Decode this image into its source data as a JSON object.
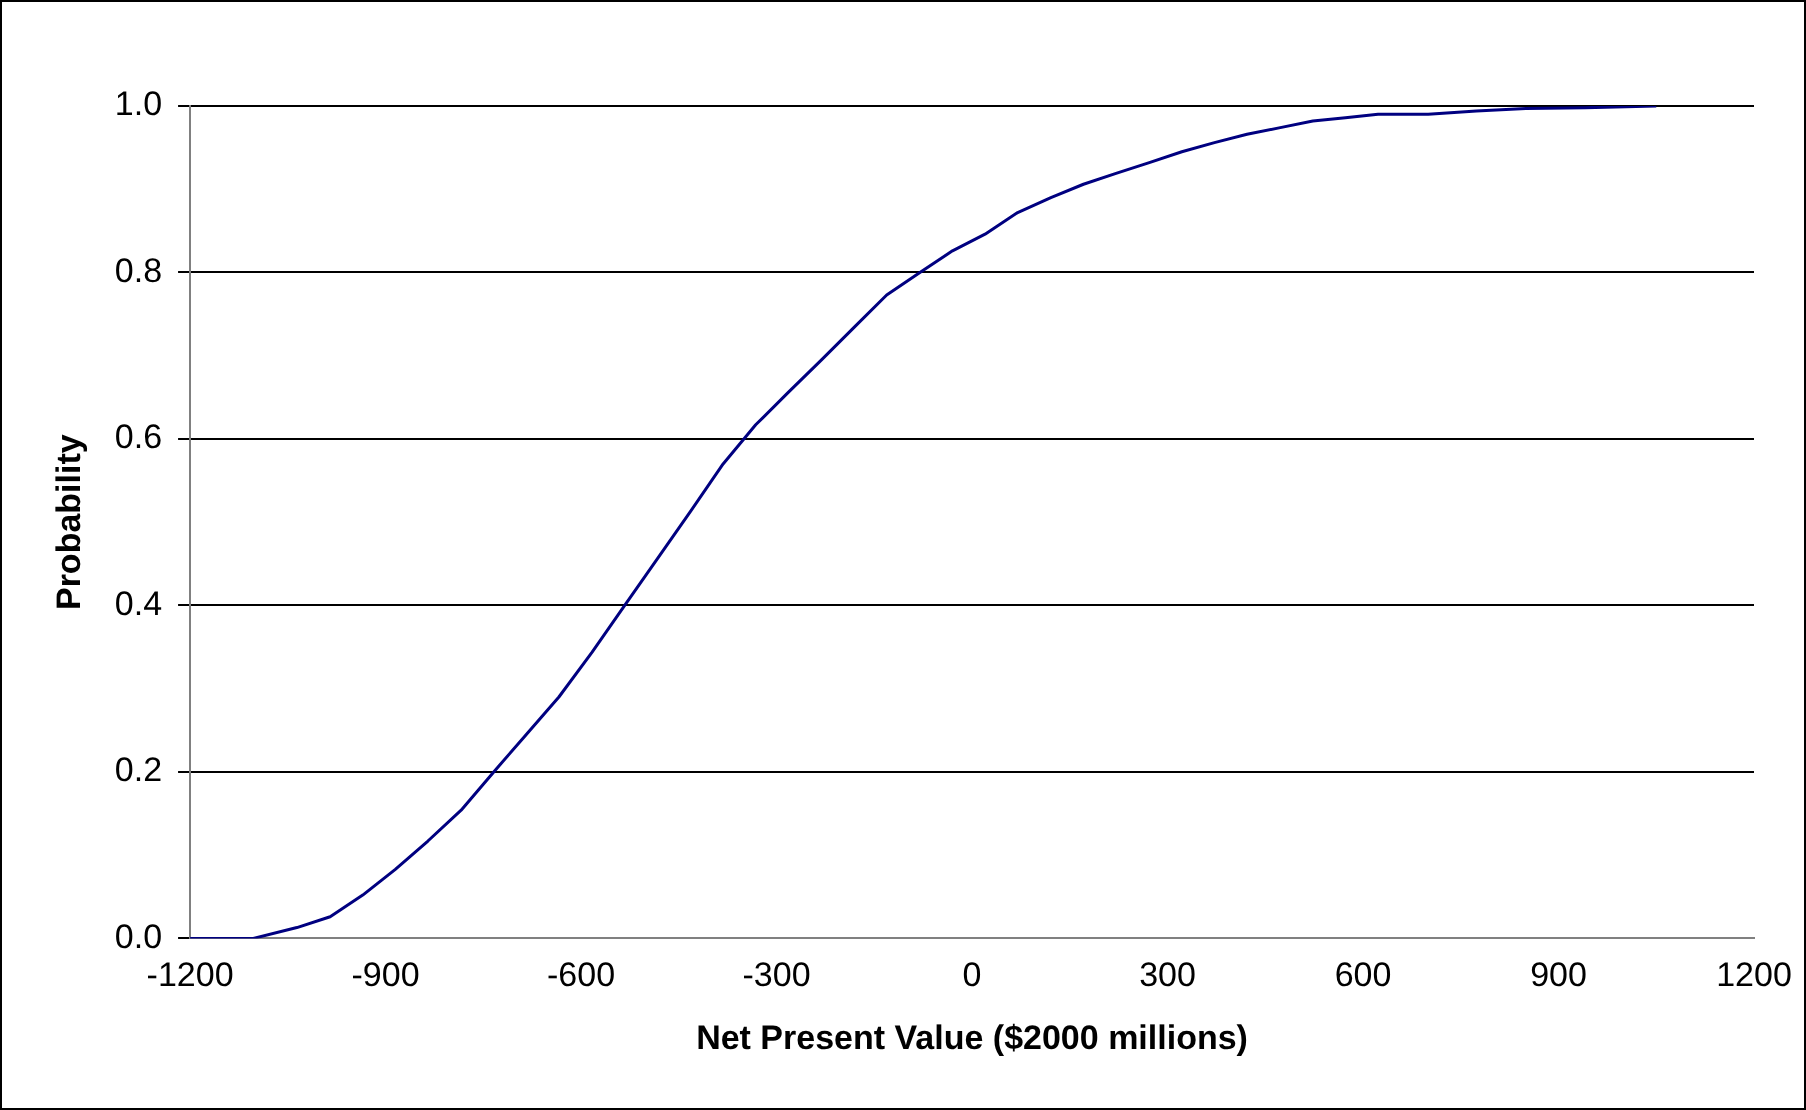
{
  "chart_data": {
    "type": "line",
    "xlabel": "Net Present Value ($2000 millions)",
    "ylabel": "Probability",
    "x": [
      -1200,
      -1103,
      -1036,
      -985,
      -935,
      -885,
      -835,
      -784,
      -734,
      -684,
      -634,
      -583,
      -533,
      -483,
      -432,
      -382,
      -332,
      -282,
      -231,
      -181,
      -131,
      -80,
      -30,
      20,
      70,
      121,
      171,
      221,
      272,
      322,
      372,
      422,
      473,
      523,
      573,
      623,
      700,
      774,
      850,
      941,
      1050
    ],
    "series": [
      {
        "color": "#000080",
        "values": [
          0.0,
          0.0,
          0.013,
          0.026,
          0.052,
          0.083,
          0.117,
          0.154,
          0.2,
          0.245,
          0.29,
          0.344,
          0.4,
          0.456,
          0.513,
          0.57,
          0.617,
          0.656,
          0.695,
          0.734,
          0.773,
          0.8,
          0.826,
          0.846,
          0.872,
          0.89,
          0.906,
          0.919,
          0.932,
          0.945,
          0.956,
          0.966,
          0.974,
          0.982,
          0.986,
          0.99,
          0.99,
          0.994,
          0.997,
          0.998,
          1.0
        ]
      }
    ],
    "xlim": [
      -1200,
      1200
    ],
    "xticks": [
      -1200,
      -900,
      -600,
      -300,
      0,
      300,
      600,
      900,
      1200
    ],
    "ylim": [
      0,
      1
    ],
    "yticks": [
      {
        "value": 0,
        "label": "0.0"
      },
      {
        "value": 0.2,
        "label": "0.2"
      },
      {
        "value": 0.4,
        "label": "0.4"
      },
      {
        "value": 0.6,
        "label": "0.6"
      },
      {
        "value": 0.8,
        "label": "0.8"
      },
      {
        "value": 1,
        "label": "1.0"
      }
    ],
    "grid": "y",
    "legend": false,
    "marker": "none",
    "line_style": "solid"
  }
}
